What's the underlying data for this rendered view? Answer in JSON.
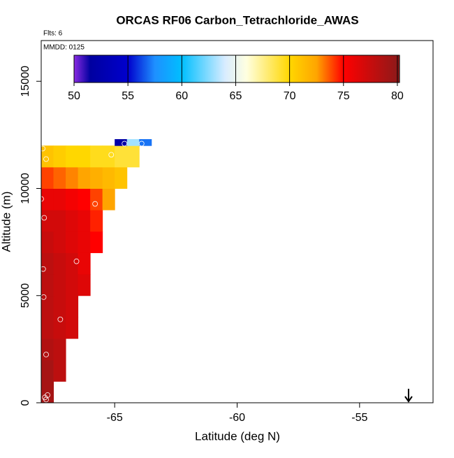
{
  "chart_data": {
    "type": "heatmap",
    "title": "ORCAS RF06 Carbon_Tetrachloride_AWAS",
    "flights_note": "Flts: 6",
    "date_note": "MMDD: 0125",
    "x_label": "Latitude (deg N)",
    "y_label": "Altitude (m)",
    "xlim": [
      -68,
      -52
    ],
    "ylim": [
      0,
      16900
    ],
    "xticks": [
      -65,
      -60,
      -55
    ],
    "yticks": [
      0,
      5000,
      10000,
      15000
    ],
    "x_edges": [
      -68,
      -67.5,
      -67,
      -66.5,
      -66,
      -65.5,
      -65,
      -64.5,
      -64,
      -63.5
    ],
    "y_edges": [
      0,
      1000,
      2000,
      3000,
      4000,
      5000,
      6000,
      7000,
      8000,
      9000,
      10000,
      11000,
      12000,
      12300
    ],
    "z": [
      [
        79,
        null,
        null,
        null,
        null,
        null,
        null,
        null,
        null
      ],
      [
        79,
        78,
        null,
        null,
        null,
        null,
        null,
        null,
        null
      ],
      [
        78.5,
        78,
        null,
        null,
        null,
        null,
        null,
        null,
        null
      ],
      [
        78,
        77.5,
        77,
        null,
        null,
        null,
        null,
        null,
        null
      ],
      [
        78,
        77.5,
        77,
        null,
        null,
        null,
        null,
        null,
        null
      ],
      [
        78,
        77.5,
        77,
        76.5,
        null,
        null,
        null,
        null,
        null
      ],
      [
        78,
        77.5,
        77,
        76,
        null,
        null,
        null,
        null,
        null
      ],
      [
        77.5,
        77,
        76.5,
        76,
        75,
        null,
        null,
        null,
        null
      ],
      [
        77,
        77,
        76.5,
        76,
        74.5,
        null,
        null,
        null,
        null
      ],
      [
        76,
        76,
        75.5,
        75,
        74,
        72.5,
        null,
        null,
        null
      ],
      [
        74,
        73.5,
        73,
        72.5,
        72,
        71.5,
        71,
        null,
        null
      ],
      [
        71,
        70.5,
        70,
        70,
        69.5,
        69.5,
        69,
        69,
        null
      ],
      [
        null,
        null,
        null,
        null,
        null,
        null,
        52,
        63,
        57
      ]
    ],
    "points_lat": [
      -67.94,
      -67.8,
      -65.14,
      -68,
      -67.88,
      -65.8,
      -67.92,
      -66.56,
      -67.9,
      -67.22,
      -67.8,
      -67.74,
      -67.85,
      -67.8,
      -64.6,
      -63.9
    ],
    "points_alt": [
      11860,
      11370,
      11570,
      9510,
      8630,
      9280,
      6240,
      6600,
      4930,
      3890,
      2250,
      360,
      250,
      150,
      12090,
      12090
    ],
    "point_color": "#ffffff",
    "arrow_lat": -53,
    "clim": [
      50,
      80.2
    ],
    "colorbar_ticks": [
      50,
      55,
      60,
      65,
      70,
      75,
      80
    ],
    "colorscale": [
      [
        50,
        "#8a2be2"
      ],
      [
        51.5,
        "#0000a0"
      ],
      [
        55,
        "#0000cd"
      ],
      [
        57.5,
        "#1e90ff"
      ],
      [
        60,
        "#00bfff"
      ],
      [
        64,
        "#d8ecff"
      ],
      [
        66,
        "#ffffe0"
      ],
      [
        70,
        "#ffd700"
      ],
      [
        72.5,
        "#ffa500"
      ],
      [
        75,
        "#ff0000"
      ],
      [
        80.2,
        "#8b1a1a"
      ]
    ]
  }
}
